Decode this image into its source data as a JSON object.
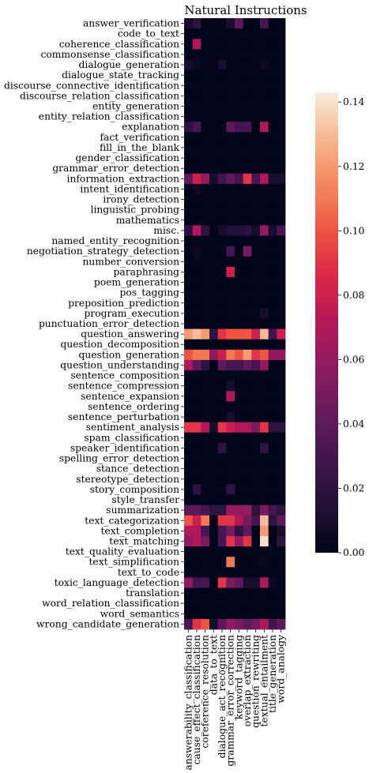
{
  "chart_data": {
    "type": "heatmap",
    "title": "Natural Instructions",
    "rows": [
      "answer_verification",
      "code_to_text",
      "coherence_classification",
      "commonsense_classification",
      "dialogue_generation",
      "dialogue_state_tracking",
      "discourse_connective_identification",
      "discourse_relation_classification",
      "entity_generation",
      "entity_relation_classification",
      "explanation",
      "fact_verification",
      "fill_in_the_blank",
      "gender_classification",
      "grammar_error_detection",
      "information_extraction",
      "intent_identification",
      "irony_detection",
      "linguistic_probing",
      "mathematics",
      "misc.",
      "named_entity_recognition",
      "negotiation_strategy_detection",
      "number_conversion",
      "paraphrasing",
      "poem_generation",
      "pos_tagging",
      "preposition_prediction",
      "program_execution",
      "punctuation_error_detection",
      "question_answering",
      "question_decomposition",
      "question_generation",
      "question_understanding",
      "sentence_composition",
      "sentence_compression",
      "sentence_expansion",
      "sentence_ordering",
      "sentence_perturbation",
      "sentiment_analysis",
      "spam_classification",
      "speaker_identification",
      "spelling_error_detection",
      "stance_detection",
      "stereotype_detection",
      "story_composition",
      "style_transfer",
      "summarization",
      "text_categorization",
      "text_completion",
      "text_matching",
      "text_quality_evaluation",
      "text_simplification",
      "text_to_code",
      "toxic_language_detection",
      "translation",
      "word_relation_classification",
      "word_semantics",
      "wrong_candidate_generation"
    ],
    "columns": [
      "answerability_classification",
      "cause_effect_classification",
      "coreference_resolution",
      "data_to_text",
      "dialogue_act_recognition",
      "grammar_error_correction",
      "keyword_tagging",
      "overlap_extraction",
      "question_rewriting",
      "textual_entailment",
      "title_generation",
      "word_analogy"
    ],
    "values": [
      [
        0.01,
        0.02,
        0,
        0,
        0,
        0.01,
        0.04,
        0,
        0,
        0.03,
        0,
        0
      ],
      [
        0,
        0,
        0,
        0,
        0,
        0,
        0,
        0,
        0,
        0,
        0,
        0
      ],
      [
        0,
        0.07,
        0,
        0,
        0,
        0,
        0,
        0,
        0,
        0,
        0,
        0
      ],
      [
        0,
        0,
        0,
        0,
        0,
        0,
        0,
        0,
        0,
        0,
        0,
        0
      ],
      [
        0.01,
        0.005,
        0,
        0,
        0.01,
        0,
        0,
        0,
        0,
        0.005,
        0,
        0
      ],
      [
        0,
        0,
        0,
        0,
        0,
        0,
        0,
        0,
        0,
        0,
        0,
        0
      ],
      [
        0,
        0,
        0,
        0,
        0,
        0,
        0,
        0,
        0,
        0,
        0,
        0
      ],
      [
        0,
        0,
        0,
        0,
        0,
        0,
        0,
        0,
        0,
        0,
        0,
        0
      ],
      [
        0,
        0,
        0,
        0,
        0,
        0,
        0,
        0,
        0,
        0,
        0,
        0
      ],
      [
        0,
        0,
        0,
        0,
        0,
        0,
        0,
        0,
        0,
        0,
        0,
        0
      ],
      [
        0.02,
        0.03,
        0,
        0,
        0,
        0.04,
        0.03,
        0.03,
        0,
        0.07,
        0,
        0
      ],
      [
        0,
        0,
        0,
        0,
        0,
        0,
        0,
        0,
        0,
        0,
        0,
        0
      ],
      [
        0,
        0,
        0,
        0,
        0,
        0,
        0,
        0,
        0,
        0,
        0,
        0
      ],
      [
        0,
        0,
        0,
        0,
        0,
        0,
        0,
        0,
        0,
        0,
        0,
        0
      ],
      [
        0,
        0,
        0,
        0,
        0,
        0,
        0,
        0,
        0,
        0,
        0,
        0
      ],
      [
        0.04,
        0.08,
        0.06,
        0.01,
        0.03,
        0.04,
        0.03,
        0.09,
        0.03,
        0.07,
        0.01,
        0.01
      ],
      [
        0,
        0.005,
        0,
        0,
        0,
        0,
        0,
        0,
        0,
        0,
        0,
        0
      ],
      [
        0,
        0,
        0,
        0,
        0,
        0,
        0,
        0,
        0,
        0,
        0,
        0
      ],
      [
        0,
        0,
        0,
        0,
        0,
        0,
        0,
        0,
        0,
        0,
        0,
        0
      ],
      [
        0,
        0,
        0,
        0,
        0,
        0,
        0,
        0,
        0,
        0,
        0,
        0
      ],
      [
        0.02,
        0.07,
        0.02,
        0,
        0.01,
        0.015,
        0.015,
        0.02,
        0.01,
        0.06,
        0.01,
        0.03
      ],
      [
        0,
        0,
        0,
        0,
        0,
        0,
        0,
        0,
        0,
        0,
        0,
        0
      ],
      [
        0,
        0.005,
        0,
        0,
        0,
        0.03,
        0,
        0.05,
        0,
        0,
        0,
        0
      ],
      [
        0,
        0,
        0,
        0,
        0,
        0,
        0,
        0,
        0,
        0,
        0,
        0
      ],
      [
        0,
        0,
        0,
        0,
        0,
        0.08,
        0,
        0,
        0,
        0,
        0,
        0
      ],
      [
        0,
        0,
        0,
        0,
        0,
        0,
        0,
        0,
        0,
        0,
        0,
        0
      ],
      [
        0,
        0,
        0,
        0,
        0,
        0,
        0,
        0,
        0,
        0,
        0,
        0
      ],
      [
        0,
        0,
        0,
        0,
        0,
        0,
        0,
        0,
        0,
        0,
        0,
        0
      ],
      [
        0,
        0,
        0,
        0,
        0,
        0,
        0,
        0,
        0,
        0.01,
        0,
        0
      ],
      [
        0,
        0,
        0,
        0,
        0,
        0,
        0,
        0,
        0,
        0,
        0,
        0
      ],
      [
        0.12,
        0.13,
        0.12,
        0.02,
        0.09,
        0.1,
        0.1,
        0.1,
        0.08,
        0.13,
        0.03,
        0.08
      ],
      [
        0,
        0,
        0,
        0,
        0,
        0,
        0,
        0,
        0,
        0,
        0,
        0
      ],
      [
        0.1,
        0.11,
        0.11,
        0.06,
        0.08,
        0.11,
        0.1,
        0.12,
        0.09,
        0.1,
        0.06,
        0.06
      ],
      [
        0.07,
        0.04,
        0.02,
        0,
        0.04,
        0.03,
        0.03,
        0.04,
        0.03,
        0.06,
        0,
        0
      ],
      [
        0,
        0,
        0,
        0,
        0,
        0,
        0,
        0,
        0,
        0,
        0,
        0
      ],
      [
        0,
        0,
        0,
        0,
        0,
        0.01,
        0,
        0,
        0,
        0,
        0,
        0
      ],
      [
        0,
        0,
        0,
        0,
        0,
        0.07,
        0,
        0,
        0,
        0,
        0,
        0
      ],
      [
        0,
        0,
        0,
        0,
        0,
        0,
        0,
        0,
        0,
        0,
        0,
        0
      ],
      [
        0,
        0,
        0,
        0,
        0,
        0.01,
        0,
        0,
        0,
        0,
        0,
        0
      ],
      [
        0.09,
        0.09,
        0.07,
        0.01,
        0.09,
        0.08,
        0.07,
        0.07,
        0.05,
        0.09,
        0.02,
        0.02
      ],
      [
        0,
        0,
        0,
        0,
        0,
        0,
        0,
        0,
        0,
        0,
        0,
        0
      ],
      [
        0,
        0,
        0,
        0,
        0.02,
        0,
        0,
        0,
        0,
        0.02,
        0,
        0
      ],
      [
        0,
        0,
        0,
        0,
        0,
        0,
        0,
        0,
        0,
        0,
        0,
        0
      ],
      [
        0,
        0,
        0,
        0,
        0,
        0,
        0,
        0,
        0,
        0,
        0,
        0
      ],
      [
        0,
        0,
        0,
        0,
        0,
        0,
        0,
        0,
        0,
        0,
        0,
        0
      ],
      [
        0,
        0.02,
        0,
        0,
        0,
        0.02,
        0,
        0,
        0,
        0,
        0,
        0
      ],
      [
        0,
        0,
        0,
        0,
        0,
        0,
        0,
        0,
        0,
        0,
        0,
        0
      ],
      [
        0.04,
        0.04,
        0.03,
        0.02,
        0.02,
        0.06,
        0.06,
        0.06,
        0.02,
        0.05,
        0.03,
        0.02
      ],
      [
        0.1,
        0.08,
        0.11,
        0,
        0.09,
        0.09,
        0.07,
        0.05,
        0.03,
        0.13,
        0.02,
        0.04
      ],
      [
        0.07,
        0.07,
        0.03,
        0,
        0.03,
        0.05,
        0.02,
        0.04,
        0,
        0.12,
        0,
        0.01
      ],
      [
        0.06,
        0.07,
        0.05,
        0,
        0.03,
        0.09,
        0.06,
        0.09,
        0,
        0.14,
        0,
        0.02
      ],
      [
        0,
        0,
        0,
        0,
        0,
        0,
        0,
        0,
        0,
        0,
        0,
        0
      ],
      [
        0,
        0,
        0,
        0,
        0,
        0.11,
        0,
        0,
        0,
        0.005,
        0,
        0
      ],
      [
        0,
        0,
        0,
        0,
        0,
        0,
        0,
        0,
        0,
        0,
        0,
        0
      ],
      [
        0.06,
        0.03,
        0.03,
        0,
        0.09,
        0.05,
        0.04,
        0.01,
        0.01,
        0.07,
        0.005,
        0
      ],
      [
        0,
        0,
        0,
        0,
        0,
        0,
        0,
        0,
        0,
        0,
        0,
        0
      ],
      [
        0,
        0,
        0,
        0,
        0,
        0,
        0,
        0,
        0,
        0,
        0,
        0
      ],
      [
        0,
        0,
        0,
        0,
        0,
        0,
        0,
        0,
        0,
        0,
        0,
        0
      ],
      [
        0.03,
        0.09,
        0.1,
        0.01,
        0.04,
        0.06,
        0.05,
        0.04,
        0.05,
        0.07,
        0.03,
        0.04
      ]
    ],
    "colorbar": {
      "colormap": "rocket",
      "min": 0,
      "max": 0.143,
      "ticks": [
        "0.00",
        "0.02",
        "0.04",
        "0.06",
        "0.08",
        "0.10",
        "0.12",
        "0.14"
      ]
    }
  }
}
